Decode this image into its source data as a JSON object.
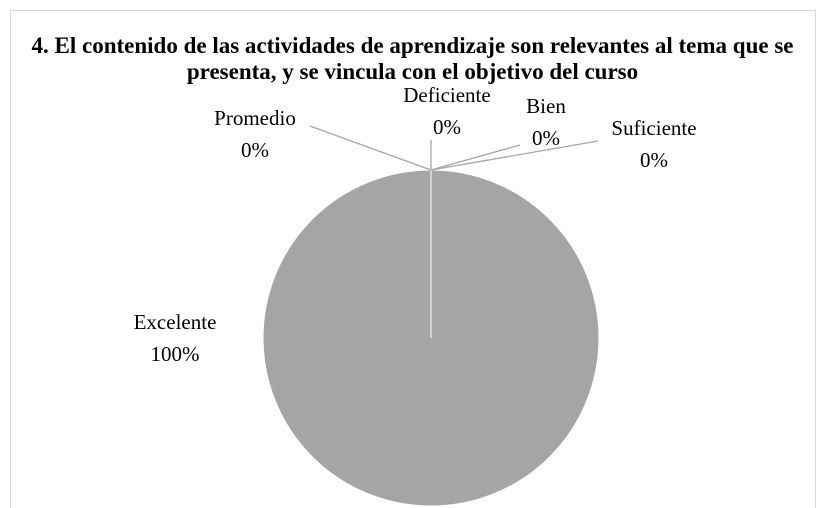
{
  "chart_data": {
    "type": "pie",
    "title": "4. El contenido de las actividades de aprendizaje son relevantes al tema que se presenta, y se vincula con el objetivo del curso",
    "categories": [
      "Excelente",
      "Promedio",
      "Deficiente",
      "Bien",
      "Suficiente"
    ],
    "values": [
      100,
      0,
      0,
      0,
      0
    ],
    "value_labels": [
      "100%",
      "0%",
      "0%",
      "0%",
      "0%"
    ],
    "color": "#a5a5a5"
  }
}
